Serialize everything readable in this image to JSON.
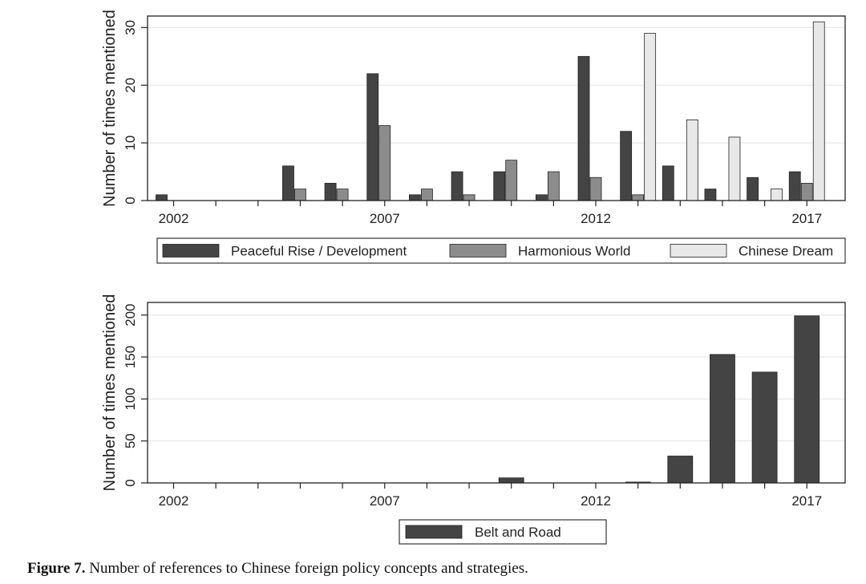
{
  "chart_data": [
    {
      "type": "bar",
      "ylabel": "Number of times  mentioned",
      "x": [
        2002,
        2003,
        2004,
        2005,
        2006,
        2007,
        2008,
        2009,
        2010,
        2011,
        2012,
        2013,
        2014,
        2015,
        2016,
        2017
      ],
      "xticks": [
        "2002",
        "2007",
        "2012",
        "2017"
      ],
      "yticks": [
        0,
        10,
        20,
        30
      ],
      "ylim": [
        0,
        32
      ],
      "grid": true,
      "legend": "bottom",
      "series": [
        {
          "name": "Peaceful Rise / Development",
          "color": "#444444",
          "values": [
            1,
            0,
            0,
            6,
            3,
            22,
            1,
            5,
            5,
            1,
            25,
            12,
            6,
            2,
            4,
            5
          ]
        },
        {
          "name": "Harmonious World",
          "color": "#8c8c8c",
          "values": [
            0,
            0,
            0,
            2,
            2,
            13,
            2,
            1,
            7,
            5,
            4,
            1,
            0,
            0,
            0,
            3
          ]
        },
        {
          "name": "Chinese Dream",
          "color": "#e8e8e8",
          "values": [
            0,
            0,
            0,
            0,
            0,
            0,
            0,
            0,
            0,
            0,
            0,
            29,
            14,
            11,
            2,
            31
          ]
        }
      ]
    },
    {
      "type": "bar",
      "ylabel": "Number of times  mentioned",
      "x": [
        2002,
        2003,
        2004,
        2005,
        2006,
        2007,
        2008,
        2009,
        2010,
        2011,
        2012,
        2013,
        2014,
        2015,
        2016,
        2017
      ],
      "xticks": [
        "2002",
        "2007",
        "2012",
        "2017"
      ],
      "yticks": [
        0,
        50,
        100,
        150,
        200
      ],
      "ylim": [
        0,
        215
      ],
      "grid": true,
      "legend": "bottom",
      "series": [
        {
          "name": "Belt and Road",
          "color": "#444444",
          "values": [
            0,
            0,
            0,
            0,
            0,
            0,
            0,
            0,
            6,
            0,
            0,
            1,
            32,
            153,
            132,
            199
          ]
        }
      ]
    }
  ],
  "caption": {
    "label": "Figure 7.",
    "text": " Number of references to Chinese foreign policy concepts and strategies."
  }
}
